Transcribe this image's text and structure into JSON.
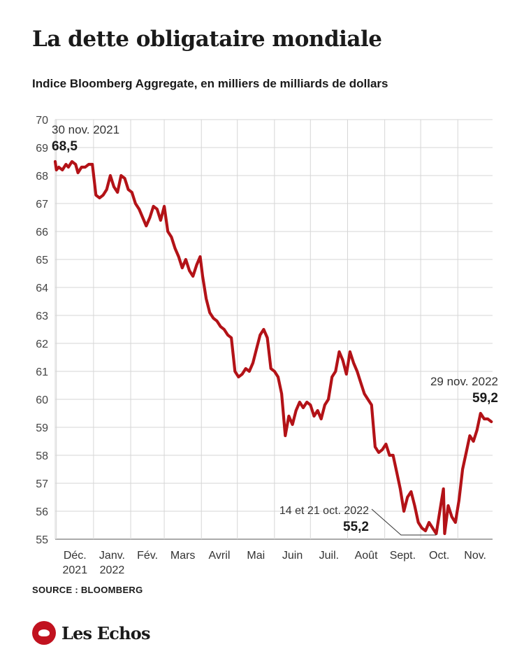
{
  "header": {
    "title": "La dette obligataire mondiale",
    "subtitle": "Indice Bloomberg Aggregate, en milliers de milliards de dollars"
  },
  "footer": {
    "source": "SOURCE : BLOOMBERG",
    "brand": "Les Echos"
  },
  "colors": {
    "line": "#b31217",
    "grid": "#d6d6d6",
    "text": "#1a1a1a"
  },
  "chart_data": {
    "type": "line",
    "title": "La dette obligataire mondiale",
    "subtitle": "Indice Bloomberg Aggregate, en milliers de milliards de dollars",
    "ylim": [
      55,
      70
    ],
    "y_ticks": [
      55,
      56,
      57,
      58,
      59,
      60,
      61,
      62,
      63,
      64,
      65,
      66,
      67,
      68,
      69,
      70
    ],
    "x_range": [
      "2021-11-30",
      "2022-11-30"
    ],
    "x_ticks": [
      {
        "date": "2021-12-01",
        "label": "Déc.",
        "sub": "2021"
      },
      {
        "date": "2022-01-01",
        "label": "Janv.",
        "sub": "2022"
      },
      {
        "date": "2022-02-01",
        "label": "Fév.",
        "sub": ""
      },
      {
        "date": "2022-03-01",
        "label": "Mars",
        "sub": ""
      },
      {
        "date": "2022-04-01",
        "label": "Avril",
        "sub": ""
      },
      {
        "date": "2022-05-01",
        "label": "Mai",
        "sub": ""
      },
      {
        "date": "2022-06-01",
        "label": "Juin",
        "sub": ""
      },
      {
        "date": "2022-07-01",
        "label": "Juil.",
        "sub": ""
      },
      {
        "date": "2022-08-01",
        "label": "Août",
        "sub": ""
      },
      {
        "date": "2022-09-01",
        "label": "Sept.",
        "sub": ""
      },
      {
        "date": "2022-10-01",
        "label": "Oct.",
        "sub": ""
      },
      {
        "date": "2022-11-01",
        "label": "Nov.",
        "sub": ""
      }
    ],
    "grid": true,
    "series": [
      {
        "color": "#b31217",
        "points": [
          [
            "2021-11-30",
            68.5
          ],
          [
            "2021-12-01",
            68.2
          ],
          [
            "2021-12-03",
            68.3
          ],
          [
            "2021-12-06",
            68.2
          ],
          [
            "2021-12-09",
            68.4
          ],
          [
            "2021-12-11",
            68.3
          ],
          [
            "2021-12-14",
            68.5
          ],
          [
            "2021-12-17",
            68.4
          ],
          [
            "2021-12-19",
            68.1
          ],
          [
            "2021-12-22",
            68.3
          ],
          [
            "2021-12-25",
            68.3
          ],
          [
            "2021-12-28",
            68.4
          ],
          [
            "2021-12-31",
            68.4
          ],
          [
            "2022-01-03",
            67.3
          ],
          [
            "2022-01-06",
            67.2
          ],
          [
            "2022-01-09",
            67.3
          ],
          [
            "2022-01-12",
            67.5
          ],
          [
            "2022-01-15",
            68.0
          ],
          [
            "2022-01-18",
            67.6
          ],
          [
            "2022-01-21",
            67.4
          ],
          [
            "2022-01-24",
            68.0
          ],
          [
            "2022-01-27",
            67.9
          ],
          [
            "2022-01-30",
            67.5
          ],
          [
            "2022-02-02",
            67.4
          ],
          [
            "2022-02-05",
            67.0
          ],
          [
            "2022-02-08",
            66.8
          ],
          [
            "2022-02-11",
            66.5
          ],
          [
            "2022-02-14",
            66.2
          ],
          [
            "2022-02-17",
            66.5
          ],
          [
            "2022-02-20",
            66.9
          ],
          [
            "2022-02-23",
            66.8
          ],
          [
            "2022-02-26",
            66.4
          ],
          [
            "2022-03-01",
            66.9
          ],
          [
            "2022-03-04",
            66.0
          ],
          [
            "2022-03-07",
            65.8
          ],
          [
            "2022-03-10",
            65.4
          ],
          [
            "2022-03-13",
            65.1
          ],
          [
            "2022-03-16",
            64.7
          ],
          [
            "2022-03-19",
            65.0
          ],
          [
            "2022-03-22",
            64.6
          ],
          [
            "2022-03-25",
            64.4
          ],
          [
            "2022-03-28",
            64.8
          ],
          [
            "2022-03-31",
            65.1
          ],
          [
            "2022-04-02",
            64.4
          ],
          [
            "2022-04-05",
            63.6
          ],
          [
            "2022-04-08",
            63.1
          ],
          [
            "2022-04-11",
            62.9
          ],
          [
            "2022-04-14",
            62.8
          ],
          [
            "2022-04-17",
            62.6
          ],
          [
            "2022-04-20",
            62.5
          ],
          [
            "2022-04-23",
            62.3
          ],
          [
            "2022-04-26",
            62.2
          ],
          [
            "2022-04-29",
            61.0
          ],
          [
            "2022-05-02",
            60.8
          ],
          [
            "2022-05-05",
            60.9
          ],
          [
            "2022-05-08",
            61.1
          ],
          [
            "2022-05-11",
            61.0
          ],
          [
            "2022-05-14",
            61.3
          ],
          [
            "2022-05-17",
            61.8
          ],
          [
            "2022-05-20",
            62.3
          ],
          [
            "2022-05-23",
            62.5
          ],
          [
            "2022-05-26",
            62.2
          ],
          [
            "2022-05-29",
            61.1
          ],
          [
            "2022-06-01",
            61.0
          ],
          [
            "2022-06-04",
            60.8
          ],
          [
            "2022-06-07",
            60.2
          ],
          [
            "2022-06-10",
            58.7
          ],
          [
            "2022-06-13",
            59.4
          ],
          [
            "2022-06-16",
            59.1
          ],
          [
            "2022-06-19",
            59.6
          ],
          [
            "2022-06-22",
            59.9
          ],
          [
            "2022-06-25",
            59.7
          ],
          [
            "2022-06-28",
            59.9
          ],
          [
            "2022-07-01",
            59.8
          ],
          [
            "2022-07-04",
            59.4
          ],
          [
            "2022-07-07",
            59.6
          ],
          [
            "2022-07-10",
            59.3
          ],
          [
            "2022-07-13",
            59.8
          ],
          [
            "2022-07-16",
            60.0
          ],
          [
            "2022-07-19",
            60.8
          ],
          [
            "2022-07-22",
            61.0
          ],
          [
            "2022-07-25",
            61.7
          ],
          [
            "2022-07-28",
            61.4
          ],
          [
            "2022-07-31",
            60.9
          ],
          [
            "2022-08-03",
            61.7
          ],
          [
            "2022-08-06",
            61.3
          ],
          [
            "2022-08-09",
            61.0
          ],
          [
            "2022-08-12",
            60.6
          ],
          [
            "2022-08-15",
            60.2
          ],
          [
            "2022-08-18",
            60.0
          ],
          [
            "2022-08-21",
            59.8
          ],
          [
            "2022-08-24",
            58.3
          ],
          [
            "2022-08-27",
            58.1
          ],
          [
            "2022-08-30",
            58.2
          ],
          [
            "2022-09-02",
            58.4
          ],
          [
            "2022-09-05",
            58.0
          ],
          [
            "2022-09-08",
            58.0
          ],
          [
            "2022-09-11",
            57.4
          ],
          [
            "2022-09-14",
            56.8
          ],
          [
            "2022-09-17",
            56.0
          ],
          [
            "2022-09-20",
            56.5
          ],
          [
            "2022-09-23",
            56.7
          ],
          [
            "2022-09-26",
            56.2
          ],
          [
            "2022-09-29",
            55.6
          ],
          [
            "2022-10-02",
            55.4
          ],
          [
            "2022-10-05",
            55.3
          ],
          [
            "2022-10-08",
            55.6
          ],
          [
            "2022-10-11",
            55.4
          ],
          [
            "2022-10-14",
            55.2
          ],
          [
            "2022-10-17",
            56.0
          ],
          [
            "2022-10-20",
            56.8
          ],
          [
            "2022-10-21",
            55.2
          ],
          [
            "2022-10-24",
            56.2
          ],
          [
            "2022-10-27",
            55.8
          ],
          [
            "2022-10-30",
            55.6
          ],
          [
            "2022-11-02",
            56.4
          ],
          [
            "2022-11-05",
            57.5
          ],
          [
            "2022-11-08",
            58.1
          ],
          [
            "2022-11-11",
            58.7
          ],
          [
            "2022-11-14",
            58.5
          ],
          [
            "2022-11-17",
            58.9
          ],
          [
            "2022-11-20",
            59.5
          ],
          [
            "2022-11-23",
            59.3
          ],
          [
            "2022-11-26",
            59.3
          ],
          [
            "2022-11-29",
            59.2
          ]
        ]
      }
    ],
    "annotations": [
      {
        "label": "30 nov. 2021",
        "value": "68,5",
        "date": "2021-11-30",
        "y": 68.5
      },
      {
        "label": "29 nov. 2022",
        "value": "59,2",
        "date": "2022-11-29",
        "y": 59.2
      },
      {
        "label": "14 et 21 oct. 2022",
        "value": "55,2",
        "date": "2022-10-14",
        "y": 55.2
      }
    ]
  }
}
